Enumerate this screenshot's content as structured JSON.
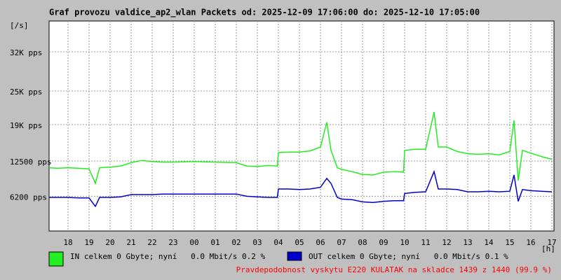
{
  "chart_data": {
    "type": "line",
    "title": "Graf provozu valdice_ap2_wlan Packets od: 2025-12-09 17:06:00 do: 2025-12-10 17:05:00",
    "y_label": "[/s]",
    "x_label": "[h]",
    "x": [
      17.1,
      17.5,
      18,
      18.5,
      19,
      19.3,
      19.5,
      20,
      20.5,
      21,
      21.5,
      22,
      22.5,
      23,
      24,
      25,
      26,
      26.5,
      27,
      27.5,
      27.95,
      28,
      28.5,
      29,
      29.5,
      30,
      30.3,
      30.5,
      30.8,
      31,
      31.5,
      32,
      32.5,
      33,
      33.5,
      33.95,
      34,
      34.5,
      35,
      35.4,
      35.6,
      36,
      36.5,
      37,
      37.5,
      38,
      38.5,
      39,
      39.2,
      39.4,
      39.6,
      40,
      40.5,
      41
    ],
    "series": [
      {
        "name": "IN celkem 0 Gbyte; nyní   0.0 Mbit/s 0.2 %",
        "color": "#22ee22",
        "values": [
          11300,
          11200,
          11300,
          11200,
          11100,
          8500,
          11300,
          11400,
          11600,
          12200,
          12600,
          12400,
          12300,
          12300,
          12400,
          12300,
          12200,
          11600,
          11500,
          11700,
          11600,
          14000,
          14100,
          14100,
          14300,
          15000,
          19400,
          14400,
          11300,
          11000,
          10600,
          10100,
          10000,
          10500,
          10600,
          10500,
          14400,
          14600,
          14600,
          21250,
          15000,
          15000,
          14200,
          13800,
          13700,
          13800,
          13600,
          14200,
          19750,
          9000,
          14400,
          13900,
          13300,
          12800
        ]
      },
      {
        "name": "OUT celkem 0 Gbyte; nyní   0.0 Mbit/s 0.1 %",
        "color": "#0000cc",
        "values": [
          6000,
          6000,
          6000,
          5900,
          5900,
          4400,
          6000,
          6000,
          6100,
          6500,
          6500,
          6500,
          6600,
          6600,
          6600,
          6600,
          6600,
          6200,
          6100,
          6000,
          6000,
          7500,
          7500,
          7400,
          7500,
          7800,
          9400,
          8500,
          6000,
          5700,
          5600,
          5200,
          5100,
          5300,
          5400,
          5400,
          6700,
          6900,
          7000,
          10600,
          7500,
          7500,
          7400,
          7000,
          7000,
          7100,
          7000,
          7100,
          10000,
          5300,
          7400,
          7200,
          7100,
          7000
        ]
      }
    ],
    "xlim": [
      17.1,
      41.1
    ],
    "xticks": [
      18,
      19,
      20,
      21,
      22,
      23,
      {
        "value": 24,
        "label": "00"
      },
      {
        "value": 25,
        "label": "01"
      },
      {
        "value": 26,
        "label": "02"
      },
      {
        "value": 27,
        "label": "03"
      },
      {
        "value": 28,
        "label": "04"
      },
      {
        "value": 29,
        "label": "05"
      },
      {
        "value": 30,
        "label": "06"
      },
      {
        "value": 31,
        "label": "07"
      },
      {
        "value": 32,
        "label": "08"
      },
      {
        "value": 33,
        "label": "09"
      },
      {
        "value": 34,
        "label": "10"
      },
      {
        "value": 35,
        "label": "11"
      },
      {
        "value": 36,
        "label": "12"
      },
      {
        "value": 37,
        "label": "13"
      },
      {
        "value": 38,
        "label": "14"
      },
      {
        "value": 39,
        "label": "15"
      },
      {
        "value": 40,
        "label": "16"
      },
      {
        "value": 41,
        "label": "17"
      }
    ],
    "ylim": [
      0,
      37500
    ],
    "yticks": [
      {
        "value": 6200,
        "label": "6200 pps"
      },
      {
        "value": 12500,
        "label": "12500 pps"
      },
      {
        "value": 19000,
        "label": "19K pps"
      },
      {
        "value": 25000,
        "label": "25K pps"
      },
      {
        "value": 32000,
        "label": "32K pps"
      }
    ],
    "grid": true,
    "footer": "Pravdepodobnost vyskytu E220 KULATAK na skladce 1439 z 1440 (99.9 %)",
    "footer_color": "#ff0000"
  }
}
